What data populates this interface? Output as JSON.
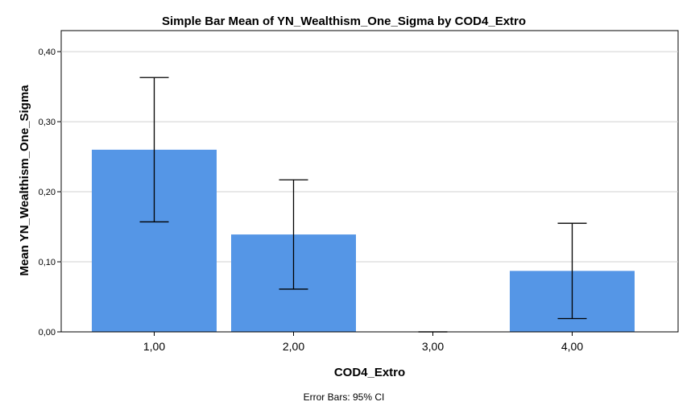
{
  "chart_data": {
    "type": "bar",
    "title": "Simple Bar Mean of YN_Wealthism_One_Sigma by COD4_Extro",
    "xlabel": "COD4_Extro",
    "ylabel": "Mean YN_Wealthism_One_Sigma",
    "categories": [
      "1,00",
      "2,00",
      "3,00",
      "4,00"
    ],
    "values": [
      0.26,
      0.139,
      0.0,
      0.087
    ],
    "ci_lower": [
      0.157,
      0.061,
      0.0,
      0.019
    ],
    "ci_upper": [
      0.363,
      0.217,
      0.0,
      0.155
    ],
    "ylim": [
      0,
      0.43
    ],
    "yticks": [
      0.0,
      0.1,
      0.2,
      0.3,
      0.4
    ],
    "ytick_labels": [
      "0,00",
      "0,10",
      "0,20",
      "0,30",
      "0,40"
    ],
    "grid": true,
    "bar_color": "#5596e6",
    "footnote": "Error Bars: 95% CI"
  }
}
